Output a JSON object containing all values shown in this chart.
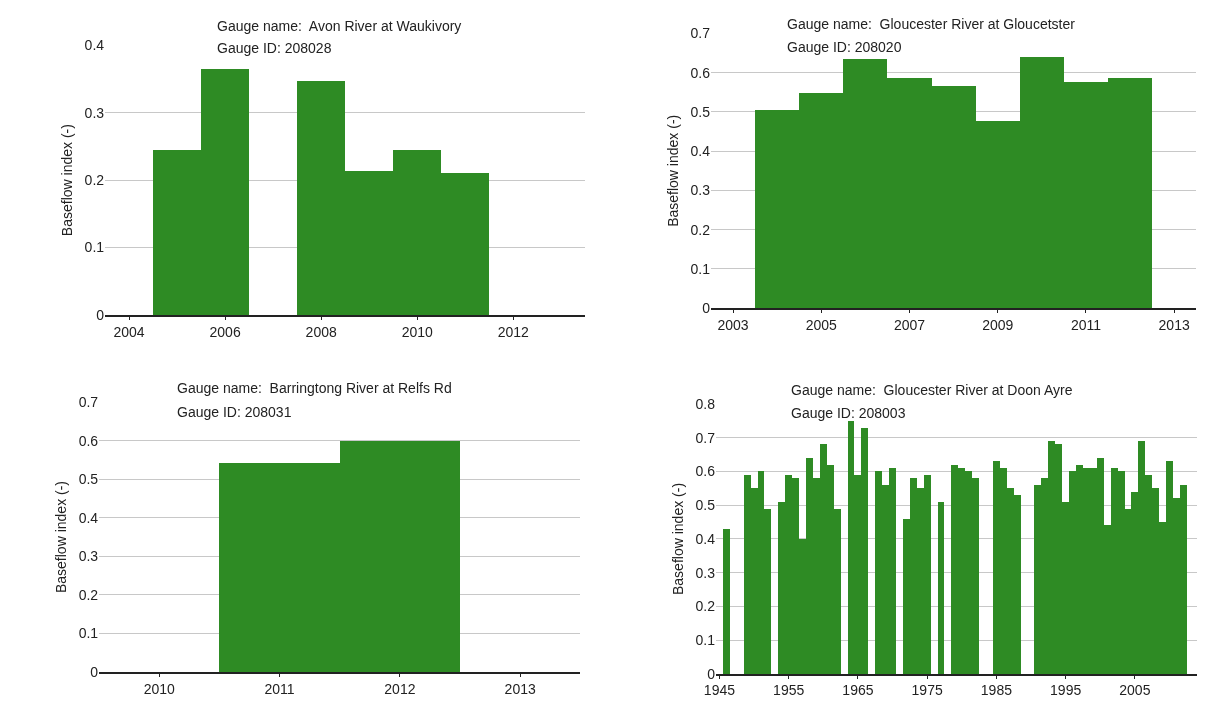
{
  "chart_data": [
    {
      "type": "bar",
      "title": "Gauge name:  Avon River at Waukivory",
      "subtitle": "Gauge ID: 208028",
      "ylabel": "Baseflow index (-)",
      "color": "#2e8b24",
      "grid": "y",
      "x": [
        2005,
        2006,
        2007,
        2008,
        2009,
        2010,
        2011
      ],
      "values": [
        0.245,
        0.365,
        null,
        0.347,
        0.213,
        0.245,
        0.211
      ],
      "xlim": [
        2003.5,
        2013.5
      ],
      "xticks": [
        2004,
        2006,
        2008,
        2010,
        2012
      ],
      "ylim": [
        0,
        0.4
      ],
      "yticks": [
        0,
        0.1,
        0.2,
        0.3,
        0.4
      ]
    },
    {
      "type": "bar",
      "title": "Gauge name:  Gloucester River at Gloucetster",
      "subtitle": "Gauge ID: 208020",
      "ylabel": "Baseflow index (-)",
      "color": "#2e8b24",
      "grid": "y",
      "x": [
        2004,
        2005,
        2006,
        2007,
        2008,
        2009,
        2010,
        2011,
        2012
      ],
      "values": [
        0.504,
        0.546,
        0.635,
        0.586,
        0.566,
        0.477,
        0.639,
        0.574,
        0.586
      ],
      "xlim": [
        2002.5,
        2013.5
      ],
      "xticks": [
        2003,
        2005,
        2007,
        2009,
        2011,
        2013
      ],
      "ylim": [
        0,
        0.7
      ],
      "yticks": [
        0,
        0.1,
        0.2,
        0.3,
        0.4,
        0.5,
        0.6,
        0.7
      ]
    },
    {
      "type": "bar",
      "title": "Gauge name:  Barringtong River at Relfs Rd",
      "subtitle": "Gauge ID: 208031",
      "ylabel": "Baseflow index (-)",
      "color": "#2e8b24",
      "grid": "y",
      "x": [
        2011,
        2012
      ],
      "values": [
        0.542,
        0.6
      ],
      "xlim": [
        2009.5,
        2013.5
      ],
      "xticks": [
        2010,
        2011,
        2012,
        2013
      ],
      "ylim": [
        0,
        0.7
      ],
      "yticks": [
        0,
        0.1,
        0.2,
        0.3,
        0.4,
        0.5,
        0.6,
        0.7
      ]
    },
    {
      "type": "bar",
      "title": "Gauge name:  Gloucester River at Doon Ayre",
      "subtitle": "Gauge ID: 208003",
      "ylabel": "Baseflow index (-)",
      "color": "#2e8b24",
      "grid": "y",
      "x": [
        1946,
        1947,
        1948,
        1949,
        1950,
        1951,
        1952,
        1953,
        1954,
        1955,
        1956,
        1957,
        1958,
        1959,
        1960,
        1961,
        1962,
        1963,
        1964,
        1965,
        1966,
        1967,
        1968,
        1969,
        1970,
        1971,
        1972,
        1973,
        1974,
        1975,
        1976,
        1977,
        1978,
        1979,
        1980,
        1981,
        1982,
        1983,
        1984,
        1985,
        1986,
        1987,
        1988,
        1989,
        1990,
        1991,
        1992,
        1993,
        1994,
        1995,
        1996,
        1997,
        1998,
        1999,
        2000,
        2001,
        2002,
        2003,
        2004,
        2005,
        2006,
        2007,
        2008,
        2009,
        2010,
        2011,
        2012
      ],
      "values": [
        0.43,
        null,
        null,
        0.59,
        0.55,
        0.6,
        0.49,
        null,
        0.51,
        0.59,
        0.58,
        0.4,
        0.64,
        0.58,
        0.68,
        0.62,
        0.49,
        null,
        0.75,
        0.59,
        0.73,
        null,
        0.6,
        0.56,
        0.61,
        null,
        0.46,
        0.58,
        0.55,
        0.59,
        null,
        0.51,
        null,
        0.62,
        0.61,
        0.6,
        0.58,
        null,
        null,
        0.63,
        0.61,
        0.55,
        0.53,
        null,
        null,
        0.56,
        0.58,
        0.69,
        0.68,
        0.51,
        0.6,
        0.62,
        0.61,
        0.61,
        0.64,
        0.44,
        0.61,
        0.6,
        0.49,
        0.54,
        0.69,
        0.59,
        0.55,
        0.45,
        0.63,
        0.52,
        0.56
      ],
      "xlim": [
        1944.5,
        2014
      ],
      "xticks": [
        1945,
        1955,
        1965,
        1975,
        1985,
        1995,
        2005
      ],
      "ylim": [
        0,
        0.8
      ],
      "yticks": [
        0,
        0.1,
        0.2,
        0.3,
        0.4,
        0.5,
        0.6,
        0.7,
        0.8
      ]
    }
  ]
}
